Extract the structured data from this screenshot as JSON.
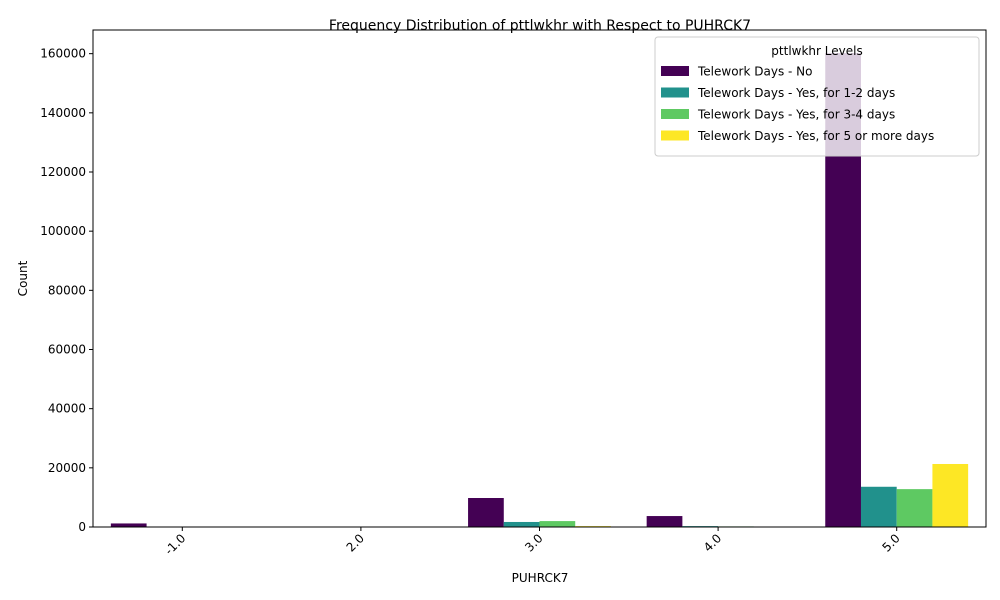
{
  "chart_data": {
    "type": "bar",
    "title": "Frequency Distribution of pttlwkhr with Respect to PUHRCK7",
    "xlabel": "PUHRCK7",
    "ylabel": "Count",
    "categories": [
      "-1.0",
      "2.0",
      "3.0",
      "4.0",
      "5.0"
    ],
    "ylim": [
      0,
      168000
    ],
    "yticks": [
      0,
      20000,
      40000,
      60000,
      80000,
      100000,
      120000,
      140000,
      160000
    ],
    "legend": {
      "title": "pttlwkhr Levels",
      "placement": "top-right"
    },
    "series": [
      {
        "name": "Telework Days - No",
        "color": "#440154",
        "values": [
          1200,
          0,
          9800,
          3700,
          160200
        ]
      },
      {
        "name": "Telework Days - Yes, for 1-2 days",
        "color": "#21918c",
        "values": [
          0,
          0,
          1700,
          300,
          13600
        ]
      },
      {
        "name": "Telework Days - Yes, for 3-4 days",
        "color": "#5ec962",
        "values": [
          0,
          0,
          2000,
          200,
          12800
        ]
      },
      {
        "name": "Telework Days - Yes, for 5 or more days",
        "color": "#fde725",
        "values": [
          0,
          0,
          300,
          0,
          21300
        ]
      }
    ]
  }
}
